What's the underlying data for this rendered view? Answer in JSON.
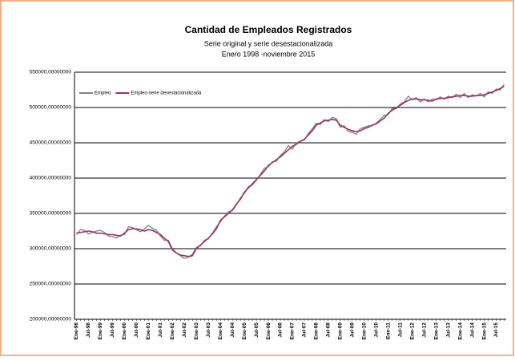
{
  "chart_data": {
    "type": "line",
    "title": "Cantidad de Empleados Registrados",
    "subtitle": "Serie original y serie desestacionalizada",
    "subtitle2": "Enero 1998 -noviembre 2015",
    "categories": [
      "Ene-98",
      null,
      null,
      "Jul-98",
      null,
      null,
      "Ene-99",
      null,
      null,
      "Jul-99",
      null,
      null,
      "Ene-00",
      null,
      null,
      "Jul-00",
      null,
      null,
      "Ene-01",
      null,
      null,
      "Jul-01",
      null,
      null,
      "Ene-02",
      null,
      null,
      "Jul-02",
      null,
      null,
      "Ene-03",
      null,
      null,
      "Jul-03",
      null,
      null,
      "Ene-04",
      null,
      null,
      "Jul-04",
      null,
      null,
      "Ene-05",
      null,
      null,
      "Jul-05",
      null,
      null,
      "Ene-06",
      null,
      null,
      "Jul-06",
      null,
      null,
      "Ene-07",
      null,
      null,
      "Jul-07",
      null,
      null,
      "Ene-08",
      null,
      null,
      "Jul-08",
      null,
      null,
      "Ene-09",
      null,
      null,
      "Jul-09",
      null,
      null,
      "Ene-10",
      null,
      null,
      "Jul-10",
      null,
      null,
      "Ene-11",
      null,
      null,
      "Jul-11",
      null,
      null,
      "Ene-12",
      null,
      null,
      "Jul-12",
      null,
      null,
      "Ene-13",
      null,
      null,
      "Jul-13",
      null,
      null,
      "Ene-14",
      null,
      null,
      "Jul-14",
      null,
      null,
      "Ene-15",
      null,
      null,
      "Jul-15",
      null,
      null
    ],
    "series": [
      {
        "name": "Empleo",
        "color": "#808080",
        "values": [
          320000,
          327000,
          326000,
          321000,
          323000,
          325000,
          326000,
          323000,
          318000,
          317000,
          315000,
          319000,
          320000,
          331000,
          330000,
          327000,
          324000,
          328000,
          333000,
          329000,
          326000,
          318000,
          312000,
          312000,
          300000,
          294000,
          290000,
          286000,
          288000,
          292000,
          302000,
          304000,
          312000,
          314000,
          322000,
          331000,
          338000,
          346000,
          352000,
          354000,
          362000,
          372000,
          378000,
          388000,
          390000,
          397000,
          405000,
          414000,
          416000,
          423000,
          424000,
          432000,
          437000,
          446000,
          441000,
          450000,
          452000,
          454000,
          463000,
          470000,
          478000,
          476000,
          483000,
          480000,
          486000,
          484000,
          472000,
          474000,
          466000,
          465000,
          462000,
          470000,
          472000,
          474000,
          474000,
          478000,
          483000,
          489000,
          490000,
          499000,
          498000,
          505000,
          508000,
          516000,
          511000,
          514000,
          508000,
          512000,
          508000,
          512000,
          511000,
          515000,
          512000,
          516000,
          514000,
          519000,
          514000,
          520000,
          514000,
          518000,
          516000,
          520000,
          515000,
          522000,
          520000,
          526000,
          525000,
          533000
        ]
      },
      {
        "name": "Empleo-serie desestacionalizada",
        "color": "#993366",
        "values": [
          322000,
          323000,
          324000,
          325000,
          324000,
          322000,
          322000,
          321000,
          320000,
          320000,
          319000,
          318000,
          322000,
          327000,
          328000,
          328000,
          327000,
          325000,
          327000,
          326000,
          323000,
          320000,
          315000,
          310000,
          298000,
          294000,
          291000,
          290000,
          289000,
          290000,
          300000,
          305000,
          310000,
          315000,
          321000,
          328000,
          340000,
          345000,
          350000,
          355000,
          363000,
          370000,
          380000,
          386000,
          392000,
          398000,
          404000,
          410000,
          418000,
          422000,
          426000,
          430000,
          435000,
          440000,
          445000,
          448000,
          452000,
          455000,
          461000,
          467000,
          475000,
          478000,
          481000,
          482000,
          483000,
          482000,
          475000,
          472000,
          469000,
          467000,
          466000,
          467000,
          470000,
          472000,
          475000,
          477000,
          481000,
          485000,
          492000,
          496000,
          500000,
          503000,
          507000,
          510000,
          512000,
          512000,
          511000,
          511000,
          510000,
          509000,
          512000,
          513000,
          513000,
          514000,
          515000,
          516000,
          517000,
          517000,
          516000,
          516000,
          517000,
          517000,
          518000,
          520000,
          522000,
          524000,
          527000,
          530000
        ]
      }
    ],
    "ylim": [
      200000,
      550000
    ],
    "yticks": [
      {
        "value": 200000,
        "label": "200000,00000000"
      },
      {
        "value": 250000,
        "label": "250000,00000000"
      },
      {
        "value": 300000,
        "label": "300000,00000000"
      },
      {
        "value": 350000,
        "label": "350000,00000000"
      },
      {
        "value": 400000,
        "label": "400000,00000000"
      },
      {
        "value": 450000,
        "label": "450000,00000000"
      },
      {
        "value": 500000,
        "label": "500000,00000000"
      },
      {
        "value": 550000,
        "label": "550000,00000000"
      }
    ],
    "grid": true,
    "legend": "top-left"
  }
}
